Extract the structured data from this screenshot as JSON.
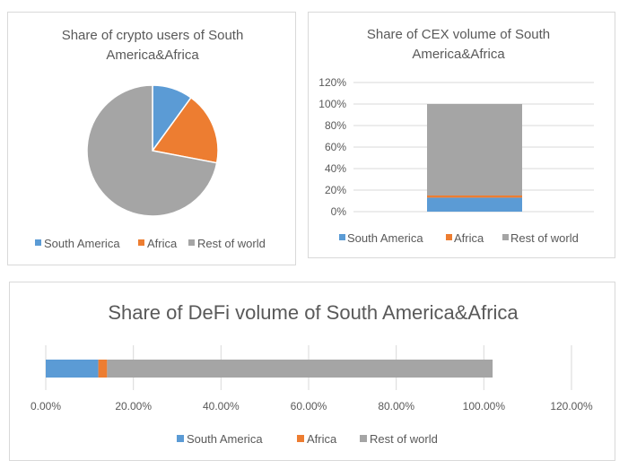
{
  "colors": {
    "south_america": "#5b9bd5",
    "africa": "#ed7d31",
    "rest_of_world": "#a5a5a5"
  },
  "chart_data": [
    {
      "type": "pie",
      "title_lines": [
        "Share of crypto users of South",
        "America&Africa"
      ],
      "legend": [
        "South America",
        "Africa",
        "Rest of world"
      ],
      "values": [
        0.1,
        0.18,
        0.72
      ]
    },
    {
      "type": "bar",
      "stacked": true,
      "orientation": "vertical",
      "title_lines": [
        "Share of CEX volume of South",
        "America&Africa"
      ],
      "legend": [
        "South America",
        "Africa",
        "Rest of world"
      ],
      "categories": [
        ""
      ],
      "series": [
        {
          "name": "South America",
          "values": [
            0.13
          ]
        },
        {
          "name": "Africa",
          "values": [
            0.02
          ]
        },
        {
          "name": "Rest of world",
          "values": [
            0.85
          ]
        }
      ],
      "ylim": [
        0,
        1.2
      ],
      "y_ticks": [
        0,
        0.2,
        0.4,
        0.6,
        0.8,
        1.0,
        1.2
      ],
      "y_tick_labels": [
        "0%",
        "20%",
        "40%",
        "60%",
        "80%",
        "100%",
        "120%"
      ]
    },
    {
      "type": "bar",
      "stacked": true,
      "orientation": "horizontal",
      "title": "Share of DeFi volume of South America&Africa",
      "legend": [
        "South America",
        "Africa",
        "Rest of world"
      ],
      "categories": [
        ""
      ],
      "series": [
        {
          "name": "South America",
          "values": [
            0.12
          ]
        },
        {
          "name": "Africa",
          "values": [
            0.02
          ]
        },
        {
          "name": "Rest of world",
          "values": [
            0.88
          ]
        }
      ],
      "xlim": [
        0,
        1.2
      ],
      "x_ticks": [
        0,
        0.2,
        0.4,
        0.6,
        0.8,
        1.0,
        1.2
      ],
      "x_tick_labels": [
        "0.00%",
        "20.00%",
        "40.00%",
        "60.00%",
        "80.00%",
        "100.00%",
        "120.00%"
      ]
    }
  ]
}
